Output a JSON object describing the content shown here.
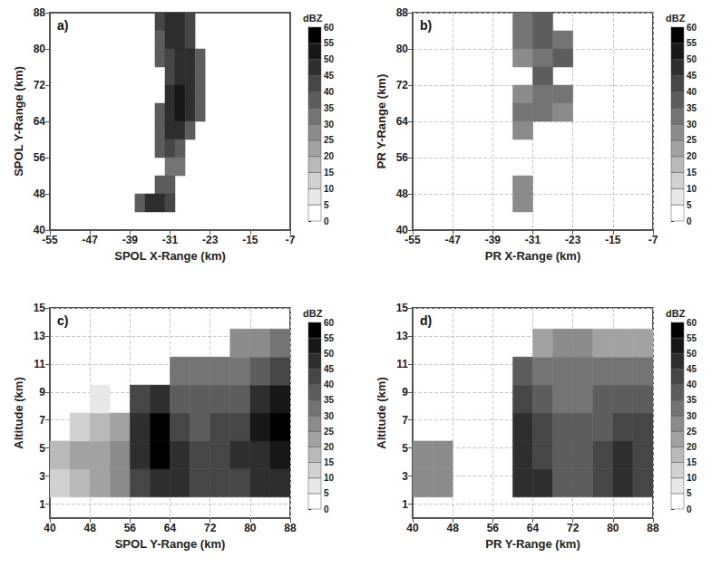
{
  "chart_data": [
    {
      "type": "heatmap",
      "panel": "a)",
      "xlabel": "SPOL X-Range (km)",
      "ylabel": "SPOL Y-Range (km)",
      "xlim": [
        -55,
        -7
      ],
      "xticks": [
        -55,
        -47,
        -39,
        -31,
        -23,
        -15,
        -7
      ],
      "ylim": [
        40,
        88
      ],
      "yticks": [
        40,
        48,
        56,
        64,
        72,
        80,
        88
      ],
      "grid": false,
      "cells": {
        "width": 2,
        "height": 4,
        "values": [
          [
            -33,
            86,
            40
          ],
          [
            -31,
            86,
            45
          ],
          [
            -29,
            86,
            45
          ],
          [
            -27,
            86,
            40
          ],
          [
            -33,
            82,
            35
          ],
          [
            -31,
            82,
            45
          ],
          [
            -29,
            82,
            45
          ],
          [
            -27,
            82,
            40
          ],
          [
            -33,
            78,
            35
          ],
          [
            -31,
            78,
            40
          ],
          [
            -29,
            78,
            45
          ],
          [
            -27,
            78,
            45
          ],
          [
            -25,
            78,
            35
          ],
          [
            -31,
            74,
            40
          ],
          [
            -29,
            74,
            45
          ],
          [
            -27,
            74,
            45
          ],
          [
            -25,
            74,
            35
          ],
          [
            -31,
            70,
            45
          ],
          [
            -29,
            70,
            50
          ],
          [
            -27,
            70,
            45
          ],
          [
            -25,
            70,
            35
          ],
          [
            -33,
            66,
            35
          ],
          [
            -31,
            66,
            45
          ],
          [
            -29,
            66,
            50
          ],
          [
            -27,
            66,
            45
          ],
          [
            -25,
            66,
            35
          ],
          [
            -33,
            62,
            35
          ],
          [
            -31,
            62,
            45
          ],
          [
            -29,
            62,
            45
          ],
          [
            -27,
            62,
            35
          ],
          [
            -33,
            58,
            35
          ],
          [
            -31,
            58,
            40
          ],
          [
            -29,
            58,
            35
          ],
          [
            -31,
            54,
            30
          ],
          [
            -29,
            54,
            30
          ],
          [
            -33,
            50,
            35
          ],
          [
            -31,
            50,
            35
          ],
          [
            -37,
            46,
            35
          ],
          [
            -35,
            46,
            45
          ],
          [
            -33,
            46,
            45
          ],
          [
            -31,
            46,
            40
          ]
        ]
      },
      "colorbar": {
        "title": "dBZ",
        "range": [
          0,
          60
        ],
        "ticks": [
          0,
          5,
          10,
          15,
          20,
          25,
          30,
          35,
          40,
          45,
          50,
          55,
          60
        ]
      }
    },
    {
      "type": "heatmap",
      "panel": "b)",
      "xlabel": "PR X-Range (km)",
      "ylabel": "PR Y-Range (km)",
      "xlim": [
        -55,
        -7
      ],
      "xticks": [
        -55,
        -47,
        -39,
        -31,
        -23,
        -15,
        -7
      ],
      "ylim": [
        40,
        88
      ],
      "yticks": [
        40,
        48,
        56,
        64,
        72,
        80,
        88
      ],
      "grid": true,
      "cells": {
        "width": 4,
        "height": 4,
        "values": [
          [
            -33,
            86,
            30
          ],
          [
            -29,
            86,
            35
          ],
          [
            -33,
            82,
            30
          ],
          [
            -29,
            82,
            35
          ],
          [
            -25,
            82,
            30
          ],
          [
            -33,
            78,
            25
          ],
          [
            -29,
            78,
            30
          ],
          [
            -25,
            78,
            35
          ],
          [
            -29,
            74,
            35
          ],
          [
            -33,
            70,
            25
          ],
          [
            -29,
            70,
            30
          ],
          [
            -25,
            70,
            30
          ],
          [
            -33,
            66,
            30
          ],
          [
            -29,
            66,
            30
          ],
          [
            -25,
            66,
            25
          ],
          [
            -33,
            62,
            25
          ],
          [
            -33,
            50,
            25
          ],
          [
            -33,
            46,
            25
          ]
        ]
      },
      "colorbar": {
        "title": "dBZ",
        "range": [
          0,
          60
        ],
        "ticks": [
          0,
          5,
          10,
          15,
          20,
          25,
          30,
          35,
          40,
          45,
          50,
          55,
          60
        ]
      }
    },
    {
      "type": "heatmap",
      "panel": "c)",
      "xlabel": "SPOL Y-Range (km)",
      "ylabel": "Altitude (km)",
      "xlim": [
        40,
        88
      ],
      "xticks": [
        40,
        48,
        56,
        64,
        72,
        80,
        88
      ],
      "ylim": [
        0,
        15
      ],
      "yticks": [
        1,
        3,
        5,
        7,
        9,
        11,
        13,
        15
      ],
      "grid": true,
      "cells": {
        "width": 4,
        "height": 2,
        "values": [
          [
            42,
            2.5,
            10
          ],
          [
            42,
            4.5,
            15
          ],
          [
            46,
            2.5,
            15
          ],
          [
            46,
            4.5,
            20
          ],
          [
            46,
            6.5,
            10
          ],
          [
            50,
            2.5,
            20
          ],
          [
            50,
            4.5,
            20
          ],
          [
            50,
            6.5,
            15
          ],
          [
            50,
            8.5,
            5
          ],
          [
            54,
            2.5,
            25
          ],
          [
            54,
            4.5,
            25
          ],
          [
            54,
            6.5,
            20
          ],
          [
            58,
            2.5,
            40
          ],
          [
            58,
            4.5,
            45
          ],
          [
            58,
            6.5,
            45
          ],
          [
            58,
            8.5,
            40
          ],
          [
            62,
            2.5,
            45
          ],
          [
            62,
            4.5,
            55
          ],
          [
            62,
            6.5,
            55
          ],
          [
            62,
            8.5,
            45
          ],
          [
            66,
            2.5,
            45
          ],
          [
            66,
            4.5,
            45
          ],
          [
            66,
            6.5,
            40
          ],
          [
            66,
            8.5,
            35
          ],
          [
            66,
            10.5,
            30
          ],
          [
            70,
            2.5,
            40
          ],
          [
            70,
            4.5,
            40
          ],
          [
            70,
            6.5,
            35
          ],
          [
            70,
            8.5,
            35
          ],
          [
            70,
            10.5,
            30
          ],
          [
            74,
            2.5,
            40
          ],
          [
            74,
            4.5,
            40
          ],
          [
            74,
            6.5,
            40
          ],
          [
            74,
            8.5,
            35
          ],
          [
            74,
            10.5,
            30
          ],
          [
            78,
            2.5,
            40
          ],
          [
            78,
            4.5,
            45
          ],
          [
            78,
            6.5,
            40
          ],
          [
            78,
            8.5,
            35
          ],
          [
            78,
            10.5,
            30
          ],
          [
            78,
            12.5,
            25
          ],
          [
            82,
            2.5,
            45
          ],
          [
            82,
            4.5,
            45
          ],
          [
            82,
            6.5,
            50
          ],
          [
            82,
            8.5,
            45
          ],
          [
            82,
            10.5,
            35
          ],
          [
            82,
            12.5,
            25
          ],
          [
            86,
            2.5,
            45
          ],
          [
            86,
            4.5,
            50
          ],
          [
            86,
            6.5,
            55
          ],
          [
            86,
            8.5,
            50
          ],
          [
            86,
            10.5,
            40
          ],
          [
            86,
            12.5,
            30
          ]
        ]
      },
      "colorbar": {
        "title": "dBZ",
        "range": [
          0,
          60
        ],
        "ticks": [
          0,
          5,
          10,
          15,
          20,
          25,
          30,
          35,
          40,
          45,
          50,
          55,
          60
        ]
      }
    },
    {
      "type": "heatmap",
      "panel": "d)",
      "xlabel": "PR Y-Range (km)",
      "ylabel": "Altitude (km)",
      "xlim": [
        40,
        88
      ],
      "xticks": [
        40,
        48,
        56,
        64,
        72,
        80,
        88
      ],
      "ylim": [
        0,
        15
      ],
      "yticks": [
        1,
        3,
        5,
        7,
        9,
        11,
        13,
        15
      ],
      "grid": true,
      "cells": {
        "width": 4,
        "height": 2,
        "values": [
          [
            42,
            2.5,
            25
          ],
          [
            42,
            4.5,
            25
          ],
          [
            46,
            2.5,
            25
          ],
          [
            46,
            4.5,
            25
          ],
          [
            62,
            2.5,
            45
          ],
          [
            62,
            4.5,
            45
          ],
          [
            62,
            6.5,
            45
          ],
          [
            62,
            8.5,
            40
          ],
          [
            62,
            10.5,
            35
          ],
          [
            66,
            2.5,
            45
          ],
          [
            66,
            4.5,
            40
          ],
          [
            66,
            6.5,
            40
          ],
          [
            66,
            8.5,
            35
          ],
          [
            66,
            10.5,
            30
          ],
          [
            66,
            12.5,
            20
          ],
          [
            70,
            2.5,
            35
          ],
          [
            70,
            4.5,
            35
          ],
          [
            70,
            6.5,
            35
          ],
          [
            70,
            8.5,
            30
          ],
          [
            70,
            10.5,
            30
          ],
          [
            70,
            12.5,
            25
          ],
          [
            74,
            2.5,
            35
          ],
          [
            74,
            4.5,
            35
          ],
          [
            74,
            6.5,
            35
          ],
          [
            74,
            8.5,
            30
          ],
          [
            74,
            10.5,
            30
          ],
          [
            74,
            12.5,
            25
          ],
          [
            78,
            2.5,
            40
          ],
          [
            78,
            4.5,
            40
          ],
          [
            78,
            6.5,
            35
          ],
          [
            78,
            8.5,
            35
          ],
          [
            78,
            10.5,
            30
          ],
          [
            78,
            12.5,
            20
          ],
          [
            82,
            2.5,
            45
          ],
          [
            82,
            4.5,
            45
          ],
          [
            82,
            6.5,
            40
          ],
          [
            82,
            8.5,
            35
          ],
          [
            82,
            10.5,
            30
          ],
          [
            82,
            12.5,
            20
          ],
          [
            86,
            2.5,
            40
          ],
          [
            86,
            4.5,
            40
          ],
          [
            86,
            6.5,
            40
          ],
          [
            86,
            8.5,
            35
          ],
          [
            86,
            10.5,
            30
          ],
          [
            86,
            12.5,
            20
          ]
        ]
      },
      "colorbar": {
        "title": "dBZ",
        "range": [
          0,
          60
        ],
        "ticks": [
          0,
          5,
          10,
          15,
          20,
          25,
          30,
          35,
          40,
          45,
          50,
          55,
          60
        ]
      }
    }
  ]
}
